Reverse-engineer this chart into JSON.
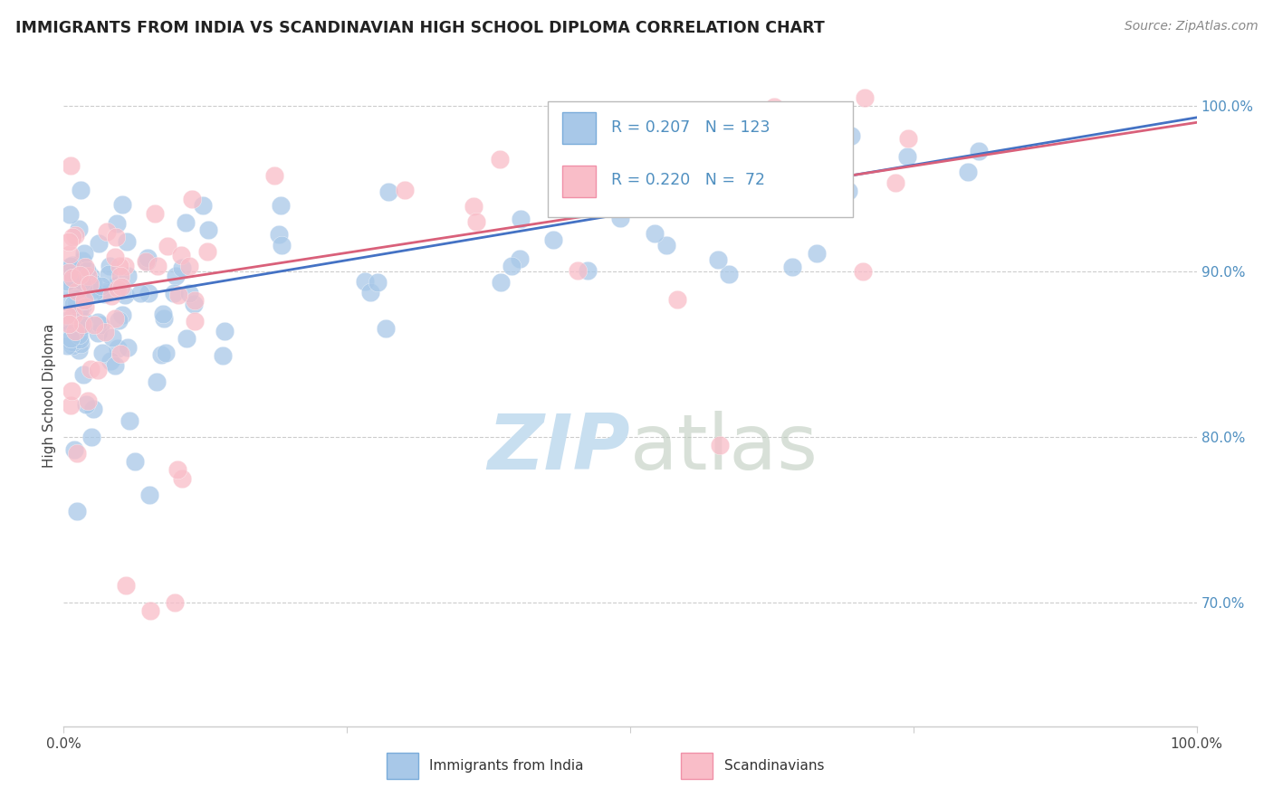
{
  "title": "IMMIGRANTS FROM INDIA VS SCANDINAVIAN HIGH SCHOOL DIPLOMA CORRELATION CHART",
  "source": "Source: ZipAtlas.com",
  "ylabel": "High School Diploma",
  "y_tick_labels": [
    "100.0%",
    "90.0%",
    "80.0%",
    "70.0%"
  ],
  "y_tick_values": [
    1.0,
    0.9,
    0.8,
    0.7
  ],
  "x_range": [
    0.0,
    1.0
  ],
  "y_range": [
    0.625,
    1.025
  ],
  "legend_india_R": 0.207,
  "legend_india_N": 123,
  "legend_scand_R": 0.22,
  "legend_scand_N": 72,
  "color_india_fill": "#a8c8e8",
  "color_india_edge": "#7aacda",
  "color_scand_fill": "#f9bdc8",
  "color_scand_edge": "#f090a8",
  "color_line_india": "#4472c4",
  "color_line_scand": "#d9607a",
  "color_title": "#222222",
  "color_source": "#888888",
  "color_tick_right": "#4f8fc0",
  "color_watermark": "#c8dff0",
  "color_grid": "#cccccc",
  "india_line_start": 0.878,
  "india_line_end": 0.993,
  "scand_line_start": 0.885,
  "scand_line_end": 0.99
}
